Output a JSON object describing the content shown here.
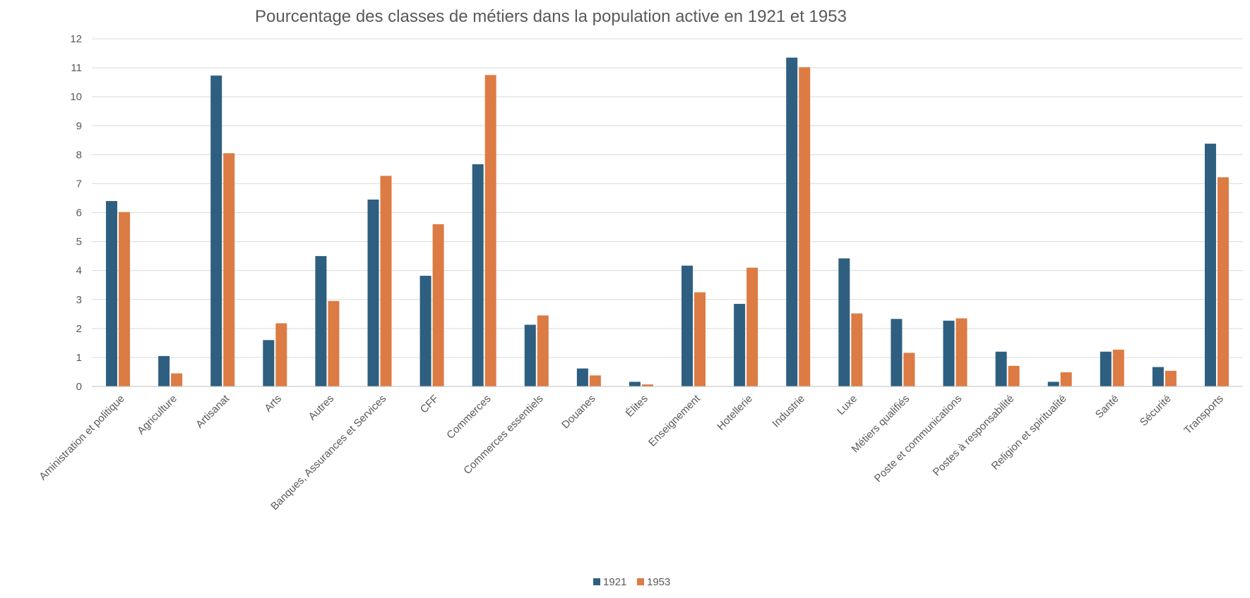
{
  "chart_data": {
    "type": "bar",
    "title": "Pourcentage des classes de métiers dans la population active en 1921 et 1953",
    "xlabel": "",
    "ylabel": "",
    "ylim": [
      0,
      12
    ],
    "yticks": [
      "0",
      "1",
      "2",
      "3",
      "4",
      "5",
      "6",
      "7",
      "8",
      "9",
      "10",
      "11",
      "12"
    ],
    "grid": true,
    "legend_position": "bottom",
    "categories": [
      "Aministration et politique",
      "Agriculture",
      "Artisanat",
      "Arts",
      "Autres",
      "Banques, Assurances et Services",
      "CFF",
      "Commerces",
      "Commerces essentiels",
      "Douanes",
      "Élites",
      "Enseignement",
      "Hotellerie",
      "Industrie",
      "Luxe",
      "Métiers qualifiés",
      "Poste et communications",
      "Postes à responsabilité",
      "Religion et spiritualité",
      "Santé",
      "Sécurité",
      "Transports"
    ],
    "series": [
      {
        "name": "1921",
        "color": "#2e5f80",
        "values": [
          6.4,
          1.05,
          10.73,
          1.6,
          4.5,
          6.45,
          3.82,
          7.67,
          2.13,
          0.62,
          0.16,
          4.17,
          2.85,
          11.35,
          4.42,
          2.33,
          2.27,
          1.2,
          0.16,
          1.2,
          0.67,
          8.38
        ]
      },
      {
        "name": "1953",
        "color": "#dc7b44",
        "values": [
          6.02,
          0.45,
          8.05,
          2.18,
          2.95,
          7.27,
          5.6,
          10.75,
          2.45,
          0.38,
          0.07,
          3.25,
          4.1,
          11.02,
          2.52,
          1.16,
          2.35,
          0.71,
          0.49,
          1.27,
          0.54,
          7.22
        ]
      }
    ]
  }
}
